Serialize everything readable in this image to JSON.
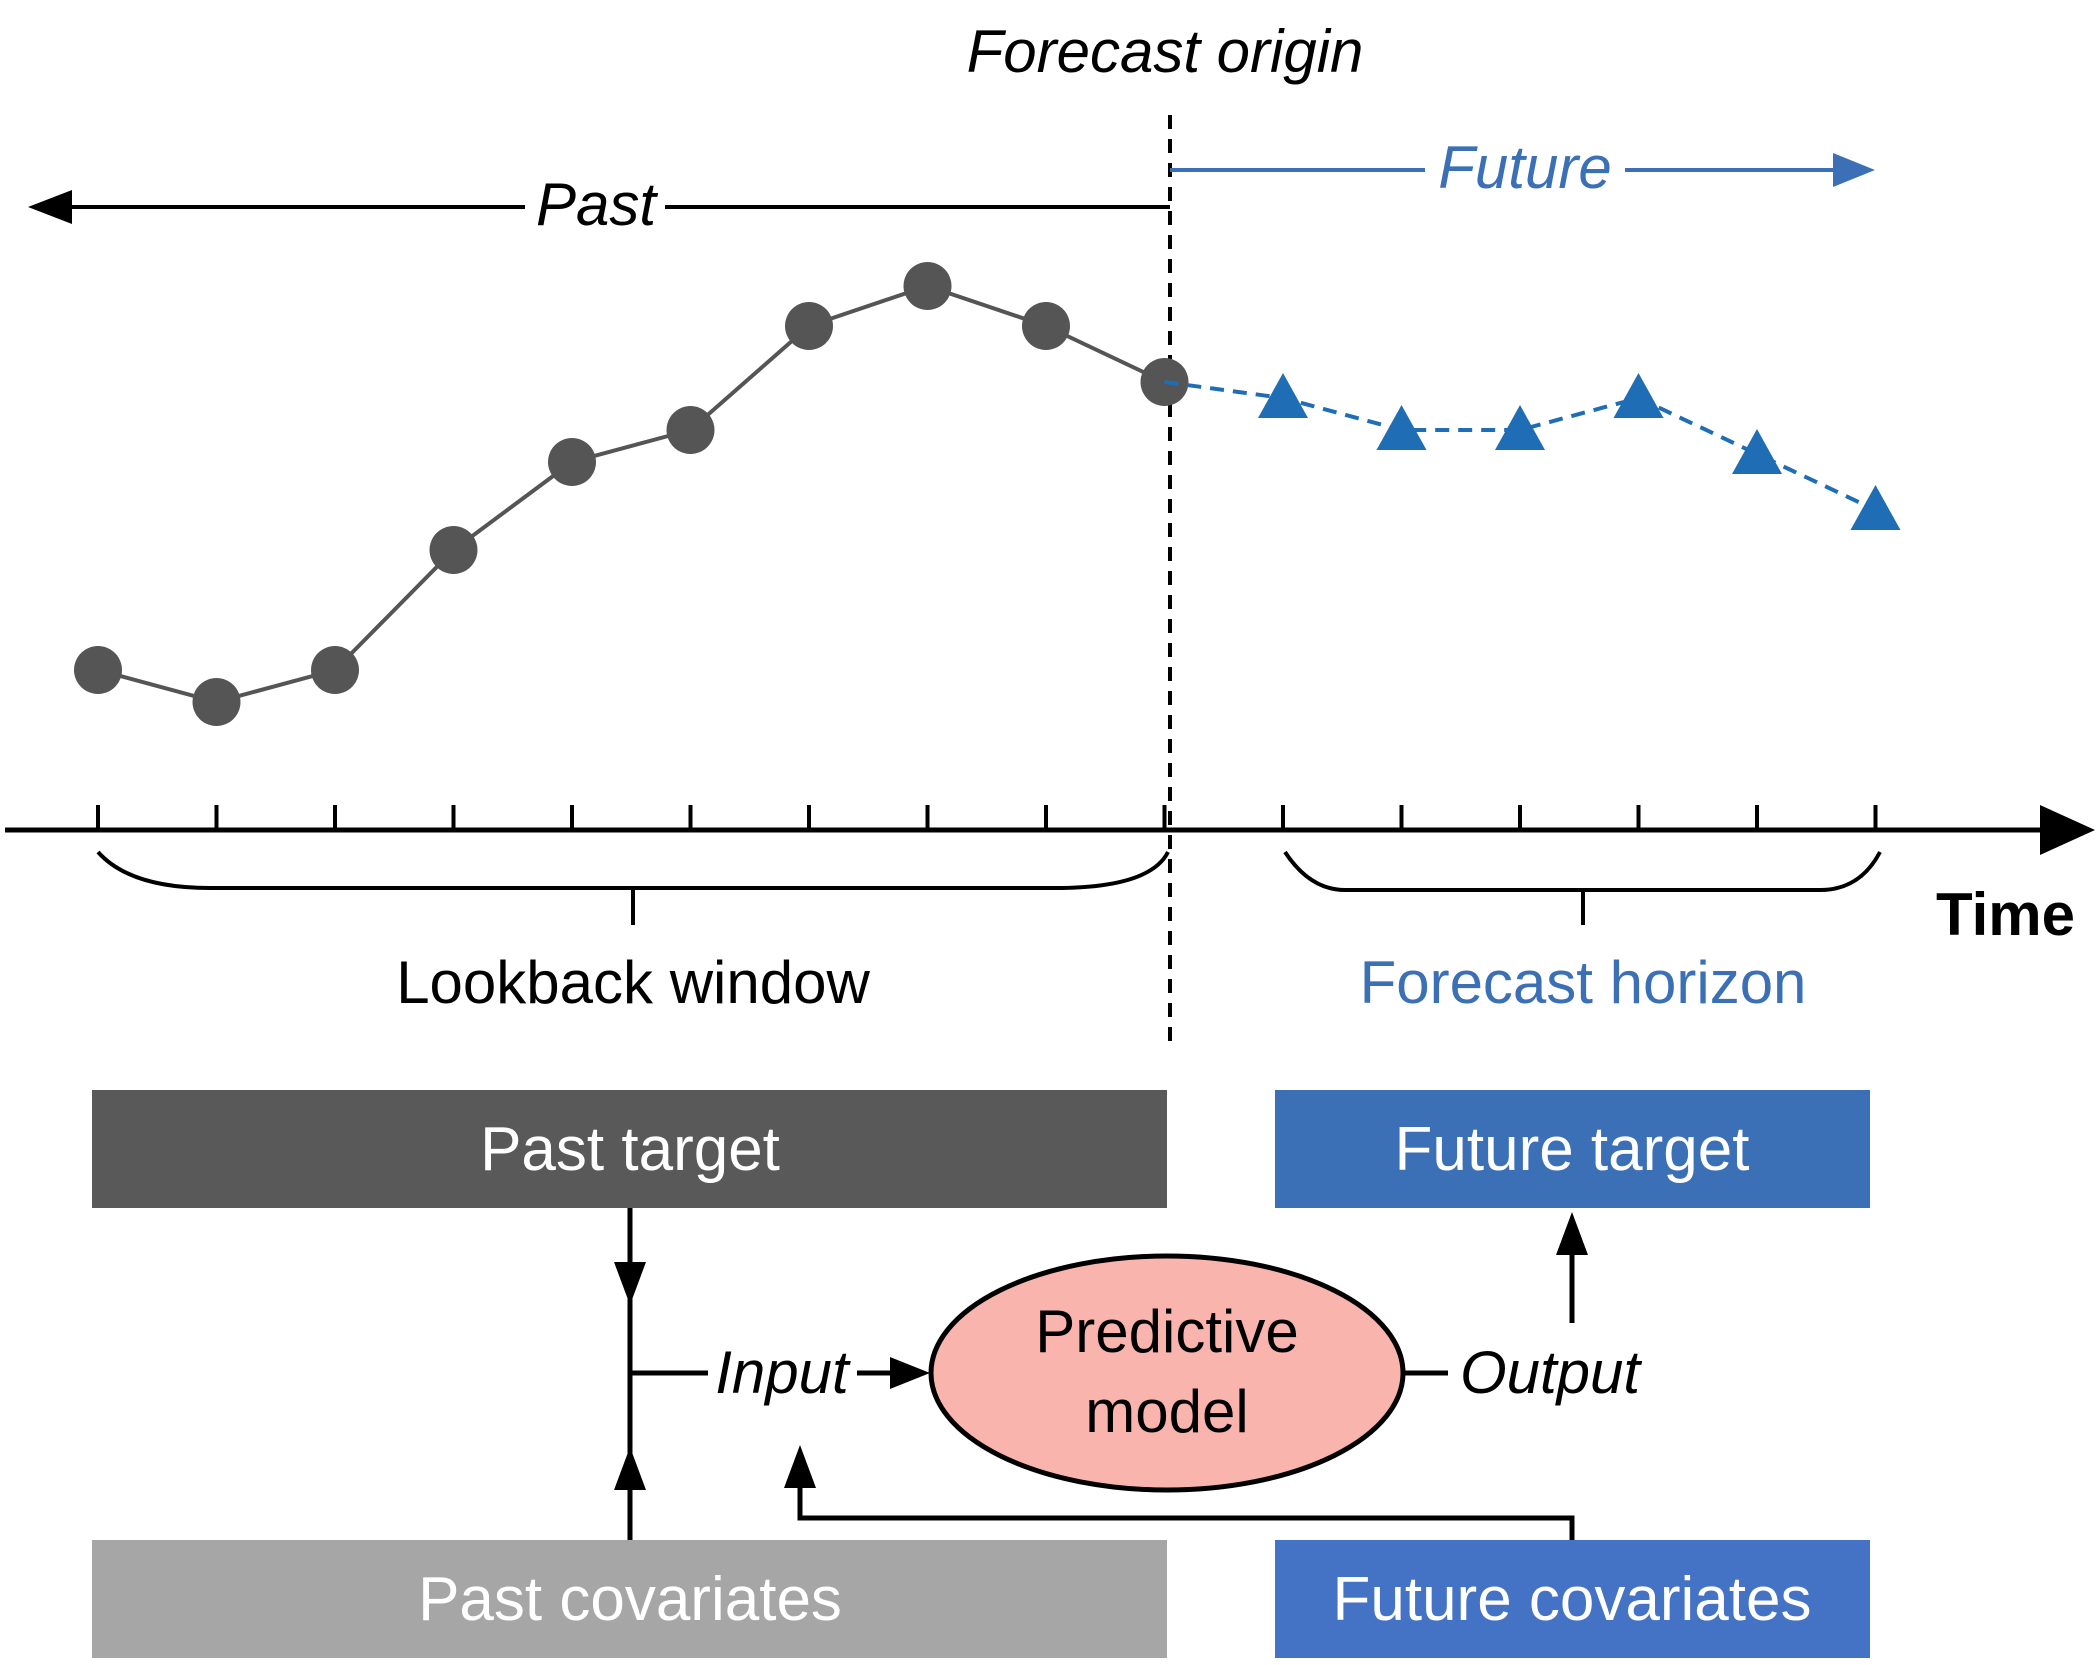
{
  "labels": {
    "forecast_origin": "Forecast origin",
    "past": "Past",
    "future": "Future",
    "time": "Time",
    "lookback_window": "Lookback window",
    "forecast_horizon": "Forecast horizon",
    "input": "Input",
    "output": "Output",
    "model_line1": "Predictive",
    "model_line2": "model"
  },
  "boxes": {
    "past_target": "Past target",
    "future_target": "Future target",
    "past_covariates": "Past covariates",
    "future_covariates": "Future covariates"
  },
  "colors": {
    "past_series": "#555555",
    "future_series": "#1f6eb5",
    "future_text": "#3b6fb6",
    "past_target_box": "#595959",
    "past_covariates_box": "#a6a6a6",
    "future_target_box": "#3b6fb6",
    "future_covariates_box": "#4472c4",
    "model_fill": "#f8b4ad"
  },
  "chart_data": {
    "type": "line",
    "past_values": [
      2.0,
      1.6,
      2.0,
      3.5,
      4.6,
      5.0,
      6.3,
      6.8,
      6.3,
      5.6
    ],
    "future_values": [
      5.4,
      5.0,
      5.0,
      5.4,
      4.7,
      4.0
    ],
    "ylim": [
      0,
      8.5
    ]
  }
}
